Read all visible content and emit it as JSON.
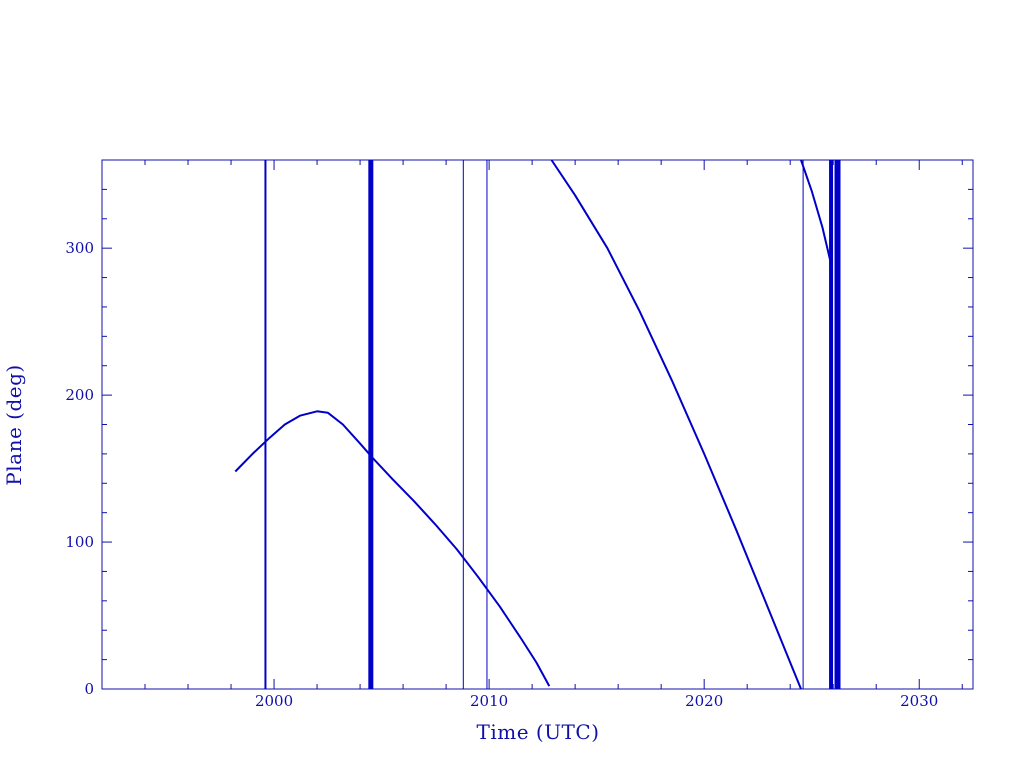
{
  "chart_data": {
    "type": "line",
    "title": "",
    "xlabel": "Time (UTC)",
    "ylabel": "Plane (deg)",
    "xlim": [
      1992.0,
      2032.5
    ],
    "ylim": [
      0,
      360
    ],
    "xticks": [
      2000,
      2010,
      2020,
      2030
    ],
    "xtick_labels": [
      "2000",
      "2010",
      "2020",
      "2030"
    ],
    "yticks": [
      0,
      100,
      200,
      300
    ],
    "ytick_labels": [
      "0",
      "100",
      "200",
      "300"
    ],
    "x_minor_step": 2,
    "y_minor_step": 20,
    "grid": false,
    "legend": "none",
    "color": "#0000c8",
    "series": [
      {
        "x": [
          1998.2,
          1999.0,
          1999.8,
          2000.5,
          2001.2,
          2002.0,
          2002.5,
          2003.2,
          2004.0,
          2004.6,
          2005.5,
          2006.5,
          2007.5,
          2008.5,
          2009.5,
          2010.5,
          2011.5,
          2012.2,
          2012.8
        ],
        "y": [
          148,
          160,
          171,
          180,
          186,
          189,
          188,
          180,
          167,
          157,
          143,
          128,
          112,
          95,
          76,
          56,
          34,
          18,
          2
        ]
      },
      {
        "x": [
          2012.9,
          2014.0,
          2015.5,
          2017.0,
          2018.5,
          2020.0,
          2021.5,
          2023.0,
          2024.0,
          2024.5
        ],
        "y": [
          360,
          336,
          300,
          257,
          210,
          160,
          108,
          54,
          18,
          0
        ]
      },
      {
        "x": [
          2024.5,
          2025.0,
          2025.5,
          2025.9
        ],
        "y": [
          360,
          339,
          314,
          289
        ]
      }
    ],
    "vertical_lines": [
      {
        "x": 1999.6,
        "weight": 2
      },
      {
        "x": 2004.5,
        "weight": 5
      },
      {
        "x": 2008.8,
        "weight": 1
      },
      {
        "x": 2009.9,
        "weight": 1
      },
      {
        "x": 2024.6,
        "weight": 1
      },
      {
        "x": 2025.9,
        "weight": 4
      },
      {
        "x": 2026.2,
        "weight": 6
      }
    ]
  }
}
